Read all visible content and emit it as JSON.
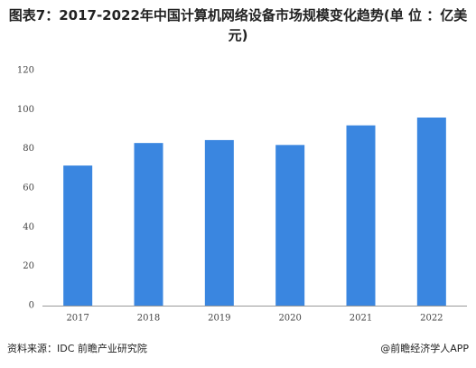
{
  "chart_data": {
    "type": "bar",
    "title": "图表7：2017-2022年中国计算机网络设备市场规模变化趋势(单 位 ：亿美元)",
    "categories": [
      "2017",
      "2018",
      "2019",
      "2020",
      "2021",
      "2022"
    ],
    "values": [
      71.5,
      83,
      84.5,
      82,
      92,
      96
    ],
    "color": "#3a86e0",
    "ylim": [
      0,
      120
    ],
    "yticks": [
      0,
      20,
      40,
      60,
      80,
      100,
      120
    ],
    "grid": false,
    "source": "资料来源：IDC 前瞻产业研究院",
    "credit": "@前瞻经济学人APP"
  }
}
